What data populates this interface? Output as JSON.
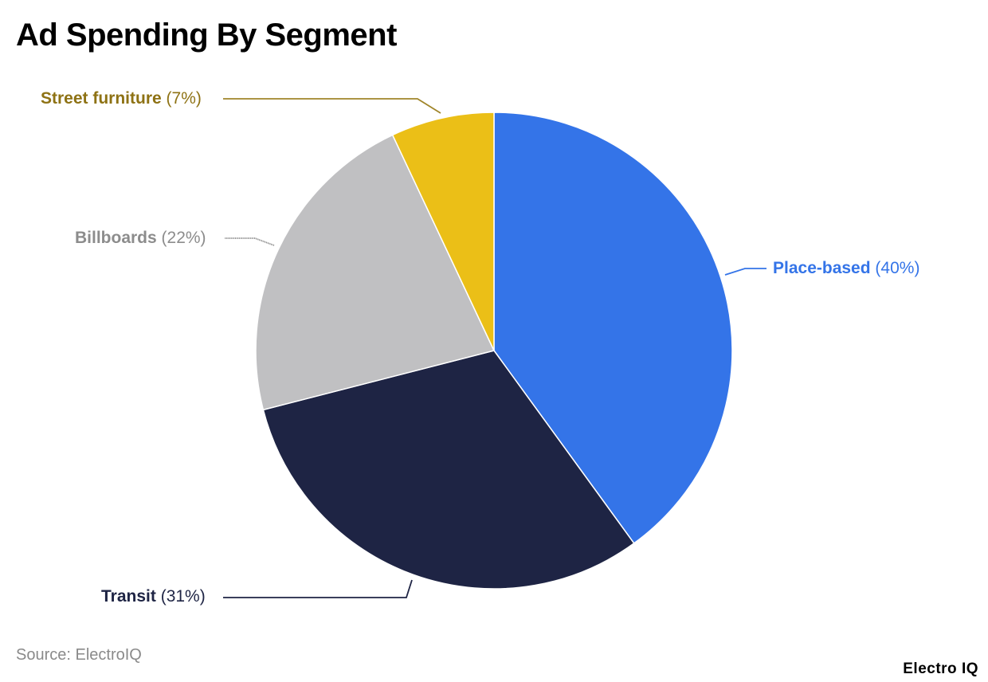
{
  "title": "Ad Spending By Segment",
  "source": "Source: ElectroIQ",
  "brand": "Electro IQ",
  "labels": [
    {
      "name": "Place-based",
      "pct": "(40%)",
      "color": "#3474E8"
    },
    {
      "name": "Transit",
      "pct": "(31%)",
      "color": "#1E2444"
    },
    {
      "name": "Billboards",
      "pct": "(22%)",
      "color": "#8C8C8C"
    },
    {
      "name": "Street furniture",
      "pct": "(7%)",
      "color": "#8E7214"
    }
  ],
  "chart_data": {
    "type": "pie",
    "title": "Ad Spending By Segment",
    "categories": [
      "Place-based",
      "Transit",
      "Billboards",
      "Street furniture"
    ],
    "values": [
      40,
      31,
      22,
      7
    ],
    "unit": "%",
    "colors": [
      "#3474E8",
      "#1E2444",
      "#C0C0C2",
      "#EBBF17"
    ],
    "start_angle": "top (12 o'clock)",
    "direction": "clockwise",
    "legend": "none (direct labels with leader lines)",
    "source": "Source: ElectroIQ"
  }
}
